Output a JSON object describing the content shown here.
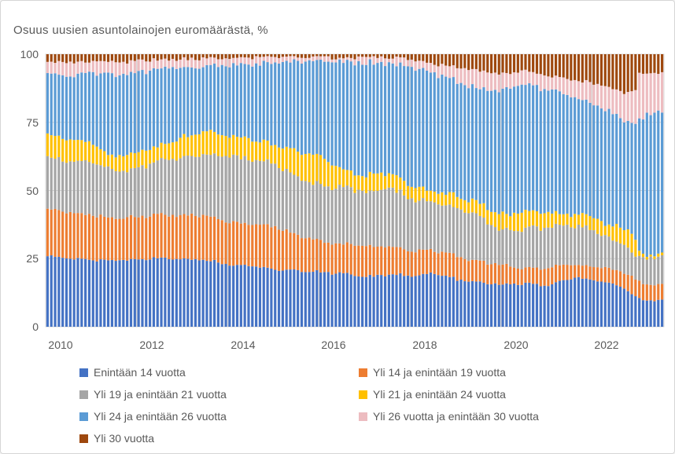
{
  "canvas": {
    "background": "#FFFFFF",
    "border_color": "#D6D6D6"
  },
  "chart_data": {
    "type": "bar",
    "stacking": "percent",
    "title": "Osuus uusien asuntolainojen euromäärästä, %",
    "xlabel": "",
    "ylabel": "",
    "ylim": [
      0,
      100
    ],
    "grid": true,
    "gridline_color": "#D9D9D9",
    "text_color": "#595959",
    "legend_position": "bottom",
    "ytick_labels": [
      "100",
      "75",
      "50",
      "25",
      "0"
    ],
    "xtick_labels": [
      "2010",
      "2012",
      "2014",
      "2016",
      "2018",
      "2020",
      "2022"
    ],
    "x_start": "2010-01",
    "x_end": "2023-07",
    "n_bars": 163,
    "bar_interval": "monthly",
    "series": [
      {
        "name": "Enintään 14 vuotta",
        "color": "#4472C4"
      },
      {
        "name": "Yli 14 ja enintään 19 vuotta",
        "color": "#ED7D31"
      },
      {
        "name": "Yli 19 ja enintään 21 vuotta",
        "color": "#A5A5A5"
      },
      {
        "name": "Yli 21 ja enintään 24 vuotta",
        "color": "#FFC000"
      },
      {
        "name": "Yli 24 ja enintään 26 vuotta",
        "color": "#5B9BD5"
      },
      {
        "name": "Yli 26 vuotta ja enintään 30 vuotta",
        "color": "#EDBCC0"
      },
      {
        "name": "Yli 30 vuotta",
        "color": "#9E480E"
      }
    ],
    "keyframes_note": "Estimated cumulative stack tops (%) for the first six series at month index m (0 = Jan 2010); the seventh series (Yli 30 vuotta) fills to 100. Monthly bars are linearly interpolated between keyframes.",
    "keyframes": [
      {
        "m": 0,
        "tops": [
          26.0,
          43.0,
          62.0,
          70.0,
          93.0,
          97.3
        ]
      },
      {
        "m": 6,
        "tops": [
          25.2,
          42.0,
          61.0,
          68.5,
          92.3,
          96.9
        ]
      },
      {
        "m": 12,
        "tops": [
          24.5,
          41.0,
          60.5,
          67.5,
          93.3,
          97.4
        ]
      },
      {
        "m": 16,
        "tops": [
          24.3,
          40.0,
          57.8,
          63.0,
          92.5,
          96.9
        ]
      },
      {
        "m": 21,
        "tops": [
          24.5,
          40.0,
          57.5,
          63.5,
          93.0,
          97.1
        ]
      },
      {
        "m": 24,
        "tops": [
          25.0,
          40.3,
          58.2,
          64.2,
          93.7,
          97.6
        ]
      },
      {
        "m": 30,
        "tops": [
          25.1,
          41.3,
          61.0,
          66.5,
          94.6,
          98.1
        ]
      },
      {
        "m": 36,
        "tops": [
          24.8,
          41.0,
          62.5,
          69.7,
          95.2,
          98.2
        ]
      },
      {
        "m": 42,
        "tops": [
          24.5,
          41.0,
          63.4,
          71.8,
          95.5,
          98.4
        ]
      },
      {
        "m": 48,
        "tops": [
          22.5,
          38.3,
          62.5,
          70.2,
          96.0,
          98.7
        ]
      },
      {
        "m": 55,
        "tops": [
          22.2,
          37.5,
          61.0,
          68.5,
          96.5,
          99.0
        ]
      },
      {
        "m": 60,
        "tops": [
          21.0,
          36.6,
          60.0,
          66.8,
          97.0,
          99.0
        ]
      },
      {
        "m": 66,
        "tops": [
          20.7,
          33.7,
          54.8,
          64.3,
          97.3,
          98.9
        ]
      },
      {
        "m": 72,
        "tops": [
          20.0,
          31.2,
          51.9,
          62.0,
          97.5,
          98.9
        ]
      },
      {
        "m": 78,
        "tops": [
          19.5,
          30.5,
          51.0,
          58.0,
          97.2,
          98.7
        ]
      },
      {
        "m": 84,
        "tops": [
          18.2,
          29.4,
          49.6,
          55.3,
          96.8,
          98.9
        ]
      },
      {
        "m": 90,
        "tops": [
          19.3,
          29.8,
          51.0,
          56.7,
          96.5,
          98.7
        ]
      },
      {
        "m": 96,
        "tops": [
          18.7,
          27.9,
          47.0,
          51.3,
          95.1,
          98.5
        ]
      },
      {
        "m": 102,
        "tops": [
          19.6,
          28.0,
          45.8,
          49.9,
          93.0,
          96.5
        ]
      },
      {
        "m": 108,
        "tops": [
          17.3,
          25.9,
          43.2,
          47.8,
          89.8,
          95.1
        ]
      },
      {
        "m": 114,
        "tops": [
          16.4,
          24.0,
          40.3,
          45.2,
          87.4,
          93.7
        ]
      },
      {
        "m": 120,
        "tops": [
          15.3,
          22.5,
          35.2,
          41.2,
          86.8,
          93.0
        ]
      },
      {
        "m": 126,
        "tops": [
          15.9,
          21.6,
          36.0,
          41.8,
          89.0,
          94.0
        ]
      },
      {
        "m": 132,
        "tops": [
          15.3,
          21.6,
          36.6,
          41.8,
          87.0,
          92.2
        ]
      },
      {
        "m": 138,
        "tops": [
          17.9,
          23.0,
          37.0,
          41.5,
          84.5,
          90.8
        ]
      },
      {
        "m": 144,
        "tops": [
          17.3,
          22.2,
          35.5,
          40.9,
          81.3,
          89.3
        ]
      },
      {
        "m": 147,
        "tops": [
          16.4,
          21.6,
          33.0,
          37.5,
          79.3,
          87.9
        ]
      },
      {
        "m": 152,
        "tops": [
          14.5,
          20.2,
          30.8,
          36.6,
          76.0,
          86.0
        ]
      },
      {
        "m": 155,
        "tops": [
          11.0,
          17.3,
          25.4,
          32.3,
          74.9,
          86.5
        ]
      },
      {
        "m": 156,
        "tops": [
          10.1,
          16.4,
          25.1,
          26.8,
          75.2,
          93.0
        ]
      },
      {
        "m": 158,
        "tops": [
          10.0,
          15.5,
          25.4,
          26.4,
          78.4,
          93.1
        ]
      },
      {
        "m": 162,
        "tops": [
          9.5,
          15.3,
          25.4,
          26.3,
          78.4,
          93.0
        ]
      }
    ]
  },
  "legend": {
    "items": [
      {
        "label": "Enintään 14 vuotta"
      },
      {
        "label": "Yli 14 ja enintään 19 vuotta"
      },
      {
        "label": "Yli 19 ja enintään 21 vuotta"
      },
      {
        "label": "Yli 21 ja enintään 24 vuotta"
      },
      {
        "label": "Yli 24 ja enintään 26 vuotta"
      },
      {
        "label": "Yli 26 vuotta ja enintään 30 vuotta"
      },
      {
        "label": "Yli 30 vuotta"
      }
    ]
  }
}
